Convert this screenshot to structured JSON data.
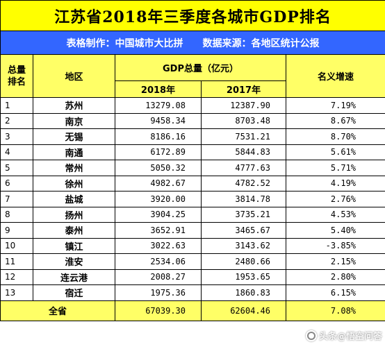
{
  "title": "江苏省2018年三季度各城市GDP排名",
  "subtitle": {
    "maker": "表格制作：中国城市大比拼",
    "source": "数据来源：各地区统计公报"
  },
  "header": {
    "rank": "总量排名",
    "region": "地区",
    "gdp_total": "GDP总量（亿元）",
    "year_2018": "2018年",
    "year_2017": "2017年",
    "growth": "名义增速"
  },
  "rows": [
    {
      "rank": "1",
      "name": "苏州",
      "gdp2018": "13279.08",
      "gdp2017": "12387.90",
      "growth": "7.19%"
    },
    {
      "rank": "2",
      "name": "南京",
      "gdp2018": "9458.34",
      "gdp2017": "8703.48",
      "growth": "8.67%"
    },
    {
      "rank": "3",
      "name": "无锡",
      "gdp2018": "8186.16",
      "gdp2017": "7531.21",
      "growth": "8.70%"
    },
    {
      "rank": "4",
      "name": "南通",
      "gdp2018": "6172.89",
      "gdp2017": "5844.83",
      "growth": "5.61%"
    },
    {
      "rank": "5",
      "name": "常州",
      "gdp2018": "5050.32",
      "gdp2017": "4777.63",
      "growth": "5.71%"
    },
    {
      "rank": "6",
      "name": "徐州",
      "gdp2018": "4982.67",
      "gdp2017": "4782.52",
      "growth": "4.19%"
    },
    {
      "rank": "7",
      "name": "盐城",
      "gdp2018": "3920.00",
      "gdp2017": "3814.78",
      "growth": "2.76%"
    },
    {
      "rank": "8",
      "name": "扬州",
      "gdp2018": "3904.25",
      "gdp2017": "3735.21",
      "growth": "4.53%"
    },
    {
      "rank": "9",
      "name": "泰州",
      "gdp2018": "3652.91",
      "gdp2017": "3465.67",
      "growth": "5.40%"
    },
    {
      "rank": "10",
      "name": "镇江",
      "gdp2018": "3022.63",
      "gdp2017": "3143.62",
      "growth": "-3.85%"
    },
    {
      "rank": "11",
      "name": "淮安",
      "gdp2018": "2534.06",
      "gdp2017": "2480.66",
      "growth": "2.15%"
    },
    {
      "rank": "12",
      "name": "连云港",
      "gdp2018": "2008.27",
      "gdp2017": "1953.65",
      "growth": "2.80%"
    },
    {
      "rank": "13",
      "name": "宿迁",
      "gdp2018": "1975.36",
      "gdp2017": "1860.83",
      "growth": "6.15%"
    }
  ],
  "total": {
    "label": "全省",
    "gdp2018": "67039.30",
    "gdp2017": "62604.46",
    "growth": "7.08%"
  },
  "watermark": "头条@悟空问答",
  "colors": {
    "title_bg": "#ffff00",
    "subtitle_bg": "#3366ff",
    "header_bg": "#ffff66",
    "total_bg": "#ffff66"
  }
}
